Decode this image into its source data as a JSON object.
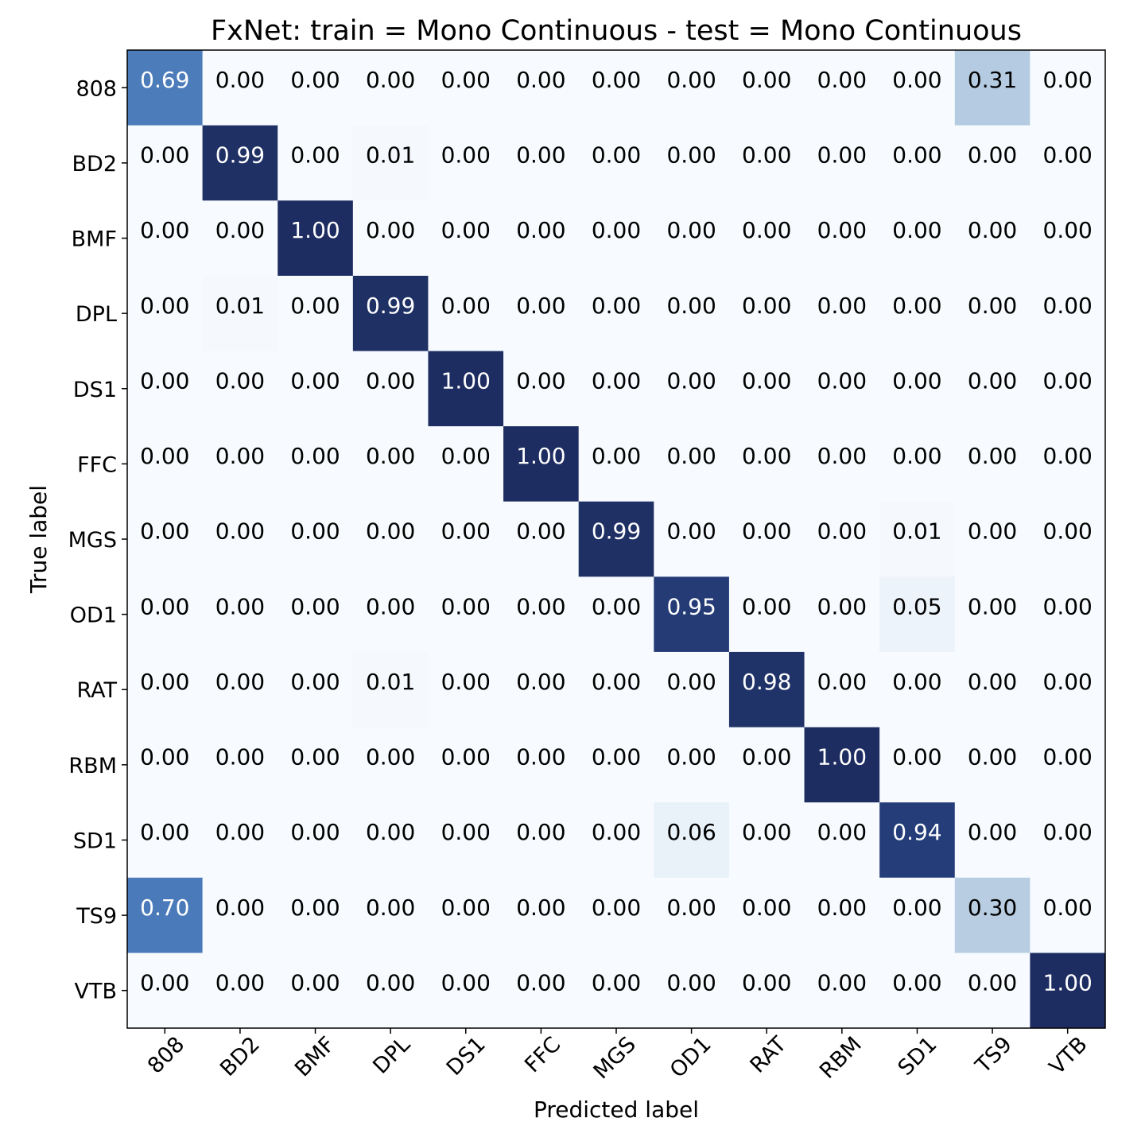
{
  "chart_data": {
    "type": "heatmap",
    "title": "FxNet: train = Mono Continuous - test = Mono Continuous",
    "xlabel": "Predicted label",
    "ylabel": "True label",
    "x_categories": [
      "808",
      "BD2",
      "BMF",
      "DPL",
      "DS1",
      "FFC",
      "MGS",
      "OD1",
      "RAT",
      "RBM",
      "SD1",
      "TS9",
      "VTB"
    ],
    "y_categories": [
      "808",
      "BD2",
      "BMF",
      "DPL",
      "DS1",
      "FFC",
      "MGS",
      "OD1",
      "RAT",
      "RBM",
      "SD1",
      "TS9",
      "VTB"
    ],
    "values": [
      [
        0.69,
        0.0,
        0.0,
        0.0,
        0.0,
        0.0,
        0.0,
        0.0,
        0.0,
        0.0,
        0.0,
        0.31,
        0.0
      ],
      [
        0.0,
        0.99,
        0.0,
        0.01,
        0.0,
        0.0,
        0.0,
        0.0,
        0.0,
        0.0,
        0.0,
        0.0,
        0.0
      ],
      [
        0.0,
        0.0,
        1.0,
        0.0,
        0.0,
        0.0,
        0.0,
        0.0,
        0.0,
        0.0,
        0.0,
        0.0,
        0.0
      ],
      [
        0.0,
        0.01,
        0.0,
        0.99,
        0.0,
        0.0,
        0.0,
        0.0,
        0.0,
        0.0,
        0.0,
        0.0,
        0.0
      ],
      [
        0.0,
        0.0,
        0.0,
        0.0,
        1.0,
        0.0,
        0.0,
        0.0,
        0.0,
        0.0,
        0.0,
        0.0,
        0.0
      ],
      [
        0.0,
        0.0,
        0.0,
        0.0,
        0.0,
        1.0,
        0.0,
        0.0,
        0.0,
        0.0,
        0.0,
        0.0,
        0.0
      ],
      [
        0.0,
        0.0,
        0.0,
        0.0,
        0.0,
        0.0,
        0.99,
        0.0,
        0.0,
        0.0,
        0.01,
        0.0,
        0.0
      ],
      [
        0.0,
        0.0,
        0.0,
        0.0,
        0.0,
        0.0,
        0.0,
        0.95,
        0.0,
        0.0,
        0.05,
        0.0,
        0.0
      ],
      [
        0.0,
        0.0,
        0.0,
        0.01,
        0.0,
        0.0,
        0.0,
        0.0,
        0.98,
        0.0,
        0.0,
        0.0,
        0.0
      ],
      [
        0.0,
        0.0,
        0.0,
        0.0,
        0.0,
        0.0,
        0.0,
        0.0,
        0.0,
        1.0,
        0.0,
        0.0,
        0.0
      ],
      [
        0.0,
        0.0,
        0.0,
        0.0,
        0.0,
        0.0,
        0.0,
        0.06,
        0.0,
        0.0,
        0.94,
        0.0,
        0.0
      ],
      [
        0.7,
        0.0,
        0.0,
        0.0,
        0.0,
        0.0,
        0.0,
        0.0,
        0.0,
        0.0,
        0.0,
        0.3,
        0.0
      ],
      [
        0.0,
        0.0,
        0.0,
        0.0,
        0.0,
        0.0,
        0.0,
        0.0,
        0.0,
        0.0,
        0.0,
        0.0,
        1.0
      ]
    ],
    "value_range": [
      0,
      1
    ],
    "colormap": "Blues",
    "colors": {
      "low": "#f7fbff",
      "high": "#1e2d61",
      "text_dark": "#000000",
      "text_light": "#ffffff"
    },
    "grid": false,
    "legend": "none"
  }
}
